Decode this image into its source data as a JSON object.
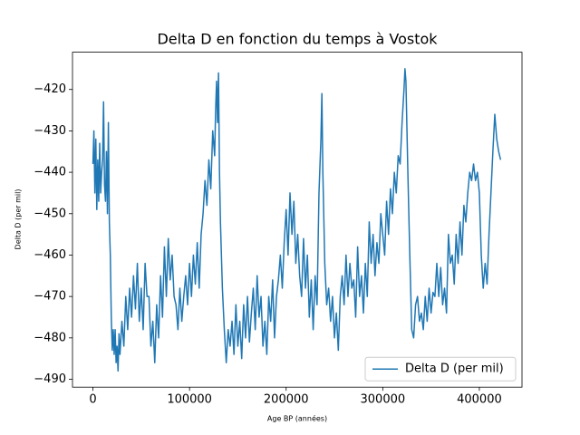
{
  "chart_data": {
    "type": "line",
    "title": "Delta D en fonction du temps à Vostok",
    "xlabel": "Age BP (années)",
    "ylabel": "Delta D (per mil)",
    "x": [
      0,
      1000,
      2000,
      3000,
      4000,
      5000,
      6000,
      7000,
      8000,
      9000,
      10000,
      11000,
      12000,
      13000,
      14000,
      15000,
      16000,
      17000,
      18000,
      19000,
      20000,
      21000,
      22000,
      23000,
      24000,
      25000,
      26000,
      27000,
      28000,
      30000,
      32000,
      34000,
      36000,
      38000,
      40000,
      42000,
      44000,
      46000,
      48000,
      50000,
      52000,
      54000,
      56000,
      58000,
      60000,
      62000,
      64000,
      66000,
      68000,
      70000,
      72000,
      74000,
      76000,
      78000,
      80000,
      82000,
      84000,
      86000,
      88000,
      90000,
      92000,
      94000,
      96000,
      98000,
      100000,
      102000,
      104000,
      106000,
      108000,
      110000,
      112000,
      114000,
      116000,
      118000,
      120000,
      122000,
      124000,
      126000,
      127000,
      128000,
      129000,
      130000,
      131000,
      132000,
      134000,
      136000,
      138000,
      140000,
      142000,
      144000,
      146000,
      148000,
      150000,
      152000,
      154000,
      156000,
      158000,
      160000,
      162000,
      164000,
      166000,
      168000,
      170000,
      172000,
      174000,
      176000,
      178000,
      180000,
      182000,
      184000,
      186000,
      188000,
      190000,
      192000,
      194000,
      196000,
      198000,
      200000,
      202000,
      204000,
      206000,
      208000,
      210000,
      212000,
      214000,
      216000,
      218000,
      220000,
      222000,
      224000,
      226000,
      228000,
      230000,
      232000,
      234000,
      236000,
      237000,
      238000,
      240000,
      242000,
      244000,
      246000,
      248000,
      250000,
      252000,
      254000,
      256000,
      258000,
      260000,
      262000,
      264000,
      266000,
      268000,
      270000,
      272000,
      274000,
      276000,
      278000,
      280000,
      282000,
      284000,
      286000,
      288000,
      290000,
      292000,
      294000,
      296000,
      298000,
      300000,
      302000,
      304000,
      306000,
      308000,
      310000,
      312000,
      314000,
      316000,
      318000,
      320000,
      322000,
      323000,
      324000,
      326000,
      328000,
      330000,
      332000,
      334000,
      336000,
      338000,
      340000,
      342000,
      344000,
      346000,
      348000,
      350000,
      352000,
      354000,
      356000,
      358000,
      360000,
      362000,
      364000,
      366000,
      368000,
      370000,
      372000,
      374000,
      376000,
      378000,
      380000,
      382000,
      384000,
      386000,
      388000,
      390000,
      392000,
      394000,
      396000,
      398000,
      400000,
      402000,
      404000,
      406000,
      408000,
      410000,
      412000,
      414000,
      416000,
      418000,
      420000,
      422000
    ],
    "series": [
      {
        "name": "Delta D (per mil)",
        "color": "#1f77b4",
        "values": [
          -438,
          -430,
          -445,
          -432,
          -449,
          -437,
          -447,
          -433,
          -445,
          -440,
          -437,
          -423,
          -443,
          -447,
          -435,
          -450,
          -428,
          -452,
          -460,
          -475,
          -483,
          -478,
          -484,
          -478,
          -486,
          -482,
          -488,
          -479,
          -484,
          -476,
          -482,
          -470,
          -478,
          -468,
          -475,
          -465,
          -473,
          -462,
          -476,
          -468,
          -478,
          -462,
          -470,
          -470,
          -482,
          -476,
          -486,
          -472,
          -480,
          -465,
          -475,
          -458,
          -470,
          -456,
          -466,
          -460,
          -470,
          -472,
          -478,
          -468,
          -476,
          -470,
          -465,
          -472,
          -462,
          -470,
          -460,
          -467,
          -457,
          -468,
          -455,
          -450,
          -442,
          -448,
          -437,
          -444,
          -430,
          -436,
          -425,
          -418,
          -428,
          -416,
          -440,
          -452,
          -468,
          -478,
          -486,
          -478,
          -482,
          -476,
          -484,
          -472,
          -482,
          -476,
          -485,
          -472,
          -480,
          -470,
          -481,
          -474,
          -468,
          -478,
          -465,
          -475,
          -470,
          -482,
          -476,
          -484,
          -470,
          -476,
          -466,
          -480,
          -470,
          -466,
          -460,
          -468,
          -457,
          -449,
          -460,
          -445,
          -455,
          -447,
          -462,
          -455,
          -465,
          -470,
          -456,
          -468,
          -460,
          -475,
          -466,
          -478,
          -465,
          -472,
          -445,
          -432,
          -421,
          -440,
          -462,
          -472,
          -468,
          -476,
          -470,
          -480,
          -474,
          -483,
          -470,
          -465,
          -472,
          -460,
          -470,
          -462,
          -468,
          -466,
          -475,
          -458,
          -470,
          -465,
          -474,
          -462,
          -470,
          -452,
          -462,
          -455,
          -465,
          -457,
          -462,
          -450,
          -455,
          -460,
          -447,
          -455,
          -444,
          -450,
          -440,
          -445,
          -436,
          -438,
          -428,
          -420,
          -415,
          -418,
          -440,
          -460,
          -478,
          -480,
          -472,
          -470,
          -476,
          -474,
          -478,
          -470,
          -476,
          -468,
          -474,
          -469,
          -470,
          -462,
          -470,
          -463,
          -472,
          -468,
          -474,
          -455,
          -462,
          -460,
          -467,
          -455,
          -462,
          -452,
          -460,
          -448,
          -452,
          -445,
          -440,
          -442,
          -438,
          -442,
          -440,
          -445,
          -460,
          -468,
          -462,
          -467,
          -455,
          -445,
          -435,
          -426,
          -432,
          -435,
          -437
        ]
      }
    ],
    "xlim": [
      -21150,
      444150
    ],
    "ylim": [
      -491.9,
      -411.0
    ],
    "xticks": [
      0,
      100000,
      200000,
      300000,
      400000
    ],
    "yticks": [
      {
        "value": -490,
        "label": "−490"
      },
      {
        "value": -480,
        "label": "−480"
      },
      {
        "value": -470,
        "label": "−470"
      },
      {
        "value": -460,
        "label": "−460"
      },
      {
        "value": -450,
        "label": "−450"
      },
      {
        "value": -440,
        "label": "−440"
      },
      {
        "value": -430,
        "label": "−430"
      },
      {
        "value": -420,
        "label": "−420"
      }
    ],
    "legend": "lower right",
    "grid": false
  }
}
